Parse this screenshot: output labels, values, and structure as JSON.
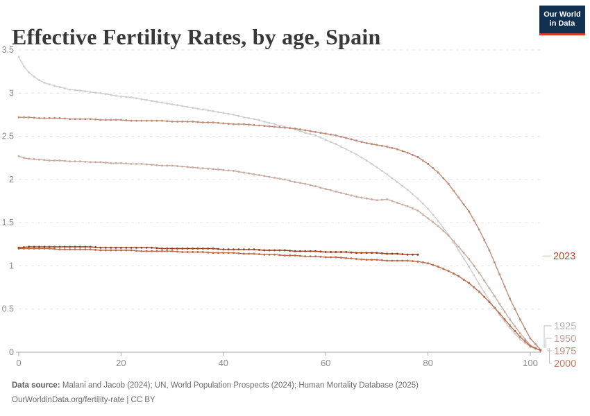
{
  "header": {
    "title": "Effective Fertility Rates, by age, Spain",
    "logo_line1": "Our World",
    "logo_line2": "in Data"
  },
  "footer": {
    "source_label": "Data source:",
    "source_text": " Malani and Jacob (2024); UN, World Population Prospects (2024); Human Mortality Database (2025)",
    "license_text": "OurWorldinData.org/fertility-rate | CC BY"
  },
  "colors": {
    "logo_bg": "#12304f",
    "logo_bar": "#d93a2b",
    "grid": "#e3e3e3",
    "axis": "#a3a3a3",
    "tick_label": "#8b8b8b",
    "connector": "#c2c2c2"
  },
  "chart_data": {
    "type": "line",
    "title": "Effective Fertility Rates, by age, Spain",
    "xlabel": "",
    "ylabel": "",
    "xlim": [
      0,
      103
    ],
    "ylim": [
      0,
      3.5
    ],
    "x_ticks": [
      0,
      20,
      40,
      60,
      80,
      100
    ],
    "y_ticks": [
      0,
      0.5,
      1,
      1.5,
      2,
      2.5,
      3,
      3.5
    ],
    "grid": "horizontal-dashed",
    "legend_position": "right-edge-year-labels",
    "series": [
      {
        "name": "1925",
        "color": "#cfcfcf",
        "label_color": "#b5b5b5",
        "points": [
          [
            0,
            3.42
          ],
          [
            1,
            3.31
          ],
          [
            2,
            3.24
          ],
          [
            3,
            3.19
          ],
          [
            4,
            3.15
          ],
          [
            5,
            3.12
          ],
          [
            6,
            3.1
          ],
          [
            8,
            3.07
          ],
          [
            10,
            3.04
          ],
          [
            12,
            3.03
          ],
          [
            14,
            3.01
          ],
          [
            16,
            3.0
          ],
          [
            18,
            2.98
          ],
          [
            20,
            2.96
          ],
          [
            22,
            2.95
          ],
          [
            24,
            2.93
          ],
          [
            26,
            2.91
          ],
          [
            28,
            2.89
          ],
          [
            30,
            2.87
          ],
          [
            32,
            2.85
          ],
          [
            34,
            2.83
          ],
          [
            36,
            2.81
          ],
          [
            38,
            2.79
          ],
          [
            40,
            2.77
          ],
          [
            42,
            2.75
          ],
          [
            44,
            2.72
          ],
          [
            46,
            2.7
          ],
          [
            48,
            2.67
          ],
          [
            50,
            2.64
          ],
          [
            52,
            2.61
          ],
          [
            54,
            2.58
          ],
          [
            56,
            2.54
          ],
          [
            58,
            2.51
          ],
          [
            60,
            2.46
          ],
          [
            62,
            2.41
          ],
          [
            64,
            2.35
          ],
          [
            66,
            2.29
          ],
          [
            68,
            2.22
          ],
          [
            70,
            2.14
          ],
          [
            72,
            2.06
          ],
          [
            74,
            1.97
          ],
          [
            76,
            1.88
          ],
          [
            78,
            1.78
          ],
          [
            80,
            1.66
          ],
          [
            82,
            1.52
          ],
          [
            84,
            1.36
          ],
          [
            86,
            1.18
          ],
          [
            88,
            0.99
          ],
          [
            90,
            0.79
          ],
          [
            92,
            0.6
          ],
          [
            94,
            0.43
          ],
          [
            96,
            0.28
          ],
          [
            98,
            0.15
          ],
          [
            100,
            0.06
          ],
          [
            102,
            0.02
          ]
        ]
      },
      {
        "name": "1950",
        "color": "#c9aca2",
        "label_color": "#bda498",
        "points": [
          [
            0,
            2.27
          ],
          [
            1,
            2.25
          ],
          [
            2,
            2.24
          ],
          [
            4,
            2.23
          ],
          [
            6,
            2.22
          ],
          [
            8,
            2.22
          ],
          [
            10,
            2.21
          ],
          [
            12,
            2.21
          ],
          [
            14,
            2.2
          ],
          [
            16,
            2.2
          ],
          [
            18,
            2.19
          ],
          [
            20,
            2.19
          ],
          [
            22,
            2.18
          ],
          [
            24,
            2.18
          ],
          [
            26,
            2.17
          ],
          [
            28,
            2.16
          ],
          [
            30,
            2.16
          ],
          [
            32,
            2.15
          ],
          [
            34,
            2.14
          ],
          [
            36,
            2.13
          ],
          [
            38,
            2.12
          ],
          [
            40,
            2.11
          ],
          [
            42,
            2.1
          ],
          [
            44,
            2.08
          ],
          [
            46,
            2.06
          ],
          [
            48,
            2.04
          ],
          [
            50,
            2.02
          ],
          [
            52,
            2.0
          ],
          [
            54,
            1.97
          ],
          [
            56,
            1.95
          ],
          [
            58,
            1.92
          ],
          [
            60,
            1.89
          ],
          [
            62,
            1.86
          ],
          [
            64,
            1.83
          ],
          [
            66,
            1.8
          ],
          [
            68,
            1.78
          ],
          [
            70,
            1.76
          ],
          [
            72,
            1.77
          ],
          [
            74,
            1.73
          ],
          [
            76,
            1.69
          ],
          [
            78,
            1.64
          ],
          [
            80,
            1.55
          ],
          [
            82,
            1.46
          ],
          [
            84,
            1.35
          ],
          [
            86,
            1.22
          ],
          [
            88,
            1.08
          ],
          [
            90,
            0.92
          ],
          [
            92,
            0.74
          ],
          [
            94,
            0.56
          ],
          [
            96,
            0.38
          ],
          [
            98,
            0.22
          ],
          [
            100,
            0.08
          ],
          [
            102,
            0.02
          ]
        ]
      },
      {
        "name": "1975",
        "color": "#c08b77",
        "label_color": "#bd8e7c",
        "points": [
          [
            0,
            2.72
          ],
          [
            2,
            2.72
          ],
          [
            4,
            2.71
          ],
          [
            6,
            2.71
          ],
          [
            8,
            2.71
          ],
          [
            10,
            2.7
          ],
          [
            12,
            2.7
          ],
          [
            14,
            2.7
          ],
          [
            16,
            2.69
          ],
          [
            18,
            2.69
          ],
          [
            20,
            2.69
          ],
          [
            22,
            2.68
          ],
          [
            24,
            2.68
          ],
          [
            26,
            2.68
          ],
          [
            28,
            2.68
          ],
          [
            30,
            2.67
          ],
          [
            32,
            2.67
          ],
          [
            34,
            2.67
          ],
          [
            36,
            2.66
          ],
          [
            38,
            2.66
          ],
          [
            40,
            2.65
          ],
          [
            42,
            2.64
          ],
          [
            44,
            2.64
          ],
          [
            46,
            2.63
          ],
          [
            48,
            2.62
          ],
          [
            50,
            2.61
          ],
          [
            52,
            2.6
          ],
          [
            54,
            2.59
          ],
          [
            56,
            2.57
          ],
          [
            58,
            2.55
          ],
          [
            60,
            2.53
          ],
          [
            62,
            2.51
          ],
          [
            64,
            2.48
          ],
          [
            66,
            2.45
          ],
          [
            68,
            2.42
          ],
          [
            70,
            2.4
          ],
          [
            72,
            2.38
          ],
          [
            74,
            2.35
          ],
          [
            76,
            2.31
          ],
          [
            78,
            2.26
          ],
          [
            80,
            2.18
          ],
          [
            82,
            2.08
          ],
          [
            84,
            1.95
          ],
          [
            86,
            1.79
          ],
          [
            88,
            1.63
          ],
          [
            90,
            1.42
          ],
          [
            92,
            1.18
          ],
          [
            94,
            0.9
          ],
          [
            96,
            0.62
          ],
          [
            98,
            0.38
          ],
          [
            100,
            0.16
          ],
          [
            102,
            0.03
          ]
        ]
      },
      {
        "name": "2000",
        "color": "#bd6c4c",
        "label_color": "#c77b5e",
        "points": [
          [
            0,
            1.2
          ],
          [
            2,
            1.2
          ],
          [
            4,
            1.2
          ],
          [
            6,
            1.2
          ],
          [
            8,
            1.19
          ],
          [
            10,
            1.19
          ],
          [
            12,
            1.19
          ],
          [
            14,
            1.19
          ],
          [
            16,
            1.18
          ],
          [
            18,
            1.18
          ],
          [
            20,
            1.18
          ],
          [
            22,
            1.18
          ],
          [
            24,
            1.17
          ],
          [
            26,
            1.17
          ],
          [
            28,
            1.17
          ],
          [
            30,
            1.17
          ],
          [
            32,
            1.16
          ],
          [
            34,
            1.16
          ],
          [
            36,
            1.16
          ],
          [
            38,
            1.15
          ],
          [
            40,
            1.15
          ],
          [
            42,
            1.15
          ],
          [
            44,
            1.14
          ],
          [
            46,
            1.14
          ],
          [
            48,
            1.13
          ],
          [
            50,
            1.13
          ],
          [
            52,
            1.12
          ],
          [
            54,
            1.12
          ],
          [
            56,
            1.11
          ],
          [
            58,
            1.11
          ],
          [
            60,
            1.1
          ],
          [
            62,
            1.1
          ],
          [
            64,
            1.09
          ],
          [
            66,
            1.08
          ],
          [
            68,
            1.07
          ],
          [
            70,
            1.07
          ],
          [
            72,
            1.06
          ],
          [
            74,
            1.06
          ],
          [
            76,
            1.06
          ],
          [
            78,
            1.05
          ],
          [
            80,
            1.03
          ],
          [
            82,
            0.99
          ],
          [
            84,
            0.94
          ],
          [
            86,
            0.88
          ],
          [
            88,
            0.8
          ],
          [
            90,
            0.7
          ],
          [
            92,
            0.58
          ],
          [
            94,
            0.45
          ],
          [
            96,
            0.31
          ],
          [
            98,
            0.18
          ],
          [
            100,
            0.07
          ],
          [
            102,
            0.02
          ]
        ]
      },
      {
        "name": "2023",
        "color": "#97421f",
        "label_color": "#b34c28",
        "points": [
          [
            0,
            1.21
          ],
          [
            2,
            1.22
          ],
          [
            4,
            1.22
          ],
          [
            6,
            1.22
          ],
          [
            8,
            1.22
          ],
          [
            10,
            1.22
          ],
          [
            12,
            1.22
          ],
          [
            14,
            1.22
          ],
          [
            16,
            1.21
          ],
          [
            18,
            1.21
          ],
          [
            20,
            1.21
          ],
          [
            22,
            1.21
          ],
          [
            24,
            1.21
          ],
          [
            26,
            1.21
          ],
          [
            28,
            1.2
          ],
          [
            30,
            1.2
          ],
          [
            32,
            1.2
          ],
          [
            34,
            1.2
          ],
          [
            36,
            1.2
          ],
          [
            38,
            1.2
          ],
          [
            40,
            1.19
          ],
          [
            42,
            1.19
          ],
          [
            44,
            1.19
          ],
          [
            46,
            1.19
          ],
          [
            48,
            1.18
          ],
          [
            50,
            1.18
          ],
          [
            52,
            1.18
          ],
          [
            54,
            1.17
          ],
          [
            56,
            1.17
          ],
          [
            58,
            1.17
          ],
          [
            60,
            1.16
          ],
          [
            62,
            1.16
          ],
          [
            64,
            1.16
          ],
          [
            66,
            1.15
          ],
          [
            68,
            1.15
          ],
          [
            70,
            1.15
          ],
          [
            72,
            1.14
          ],
          [
            74,
            1.14
          ],
          [
            76,
            1.13
          ],
          [
            78,
            1.13
          ]
        ]
      }
    ]
  }
}
